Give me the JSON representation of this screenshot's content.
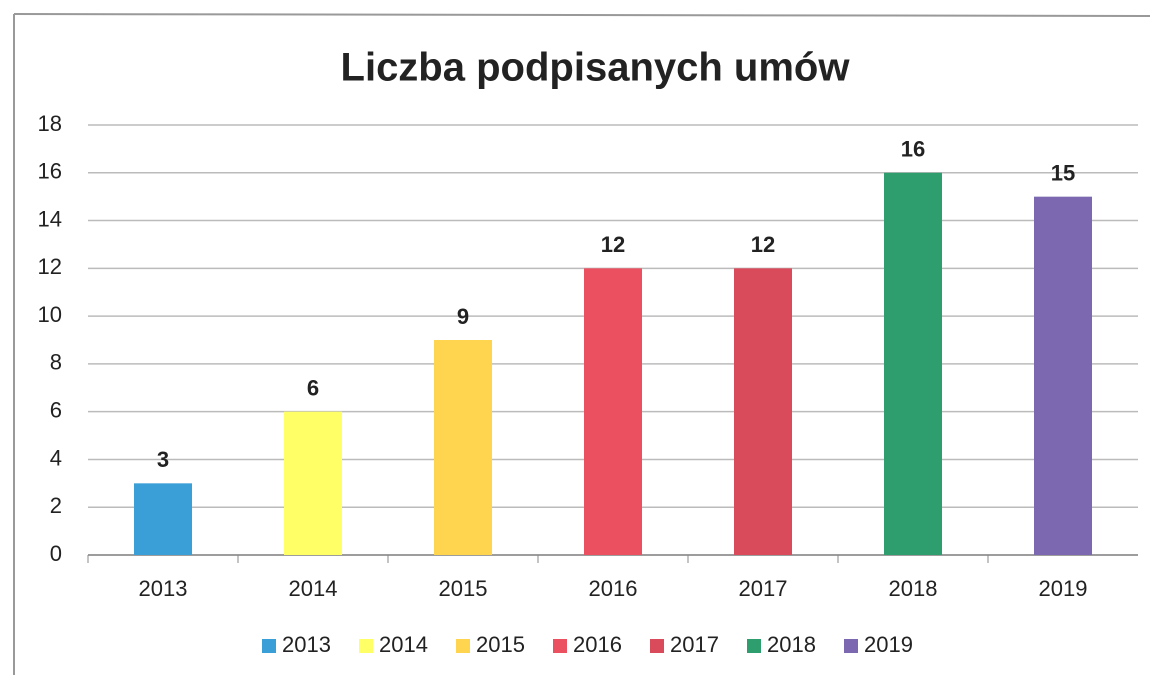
{
  "chart_data": {
    "type": "bar",
    "title": "Liczba podpisanych umów",
    "categories": [
      "2013",
      "2014",
      "2015",
      "2016",
      "2017",
      "2018",
      "2019"
    ],
    "values": [
      3,
      6,
      9,
      12,
      12,
      16,
      15
    ],
    "colors": [
      "#3a9fd6",
      "#ffff66",
      "#ffd54f",
      "#ea5060",
      "#d94a5a",
      "#2e9e6e",
      "#7b68b0"
    ],
    "ylim": [
      0,
      18
    ],
    "yticks": [
      0,
      2,
      4,
      6,
      8,
      10,
      12,
      14,
      16,
      18
    ],
    "grid": true,
    "data_labels": true,
    "legend": "bottom"
  }
}
